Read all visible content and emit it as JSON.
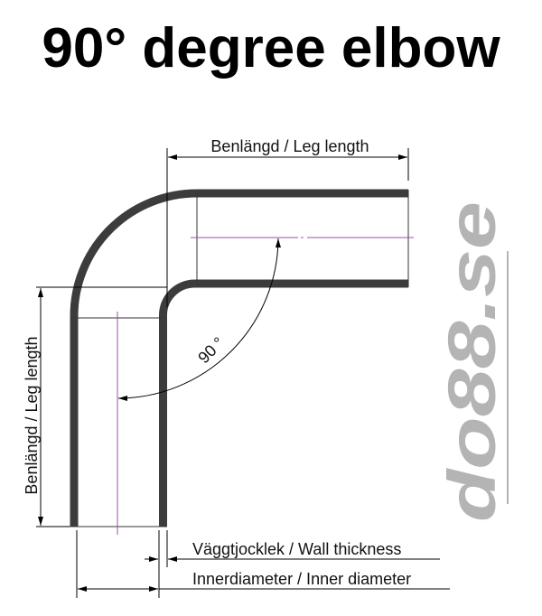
{
  "title": "90° degree elbow",
  "labels": {
    "leg_length_top": "Benlängd / Leg length",
    "leg_length_side": "Benlängd / Leg length",
    "angle": "90 °",
    "wall_thickness": "Väggtjocklek / Wall thickness",
    "inner_diameter": "Innerdiameter / Inner diameter"
  },
  "logo": {
    "text": "do88.se",
    "color": "#b4b4b4"
  },
  "colors": {
    "pipe": "#3c3c3c",
    "centerline": "#9b4fa8",
    "dimension": "#000000"
  }
}
